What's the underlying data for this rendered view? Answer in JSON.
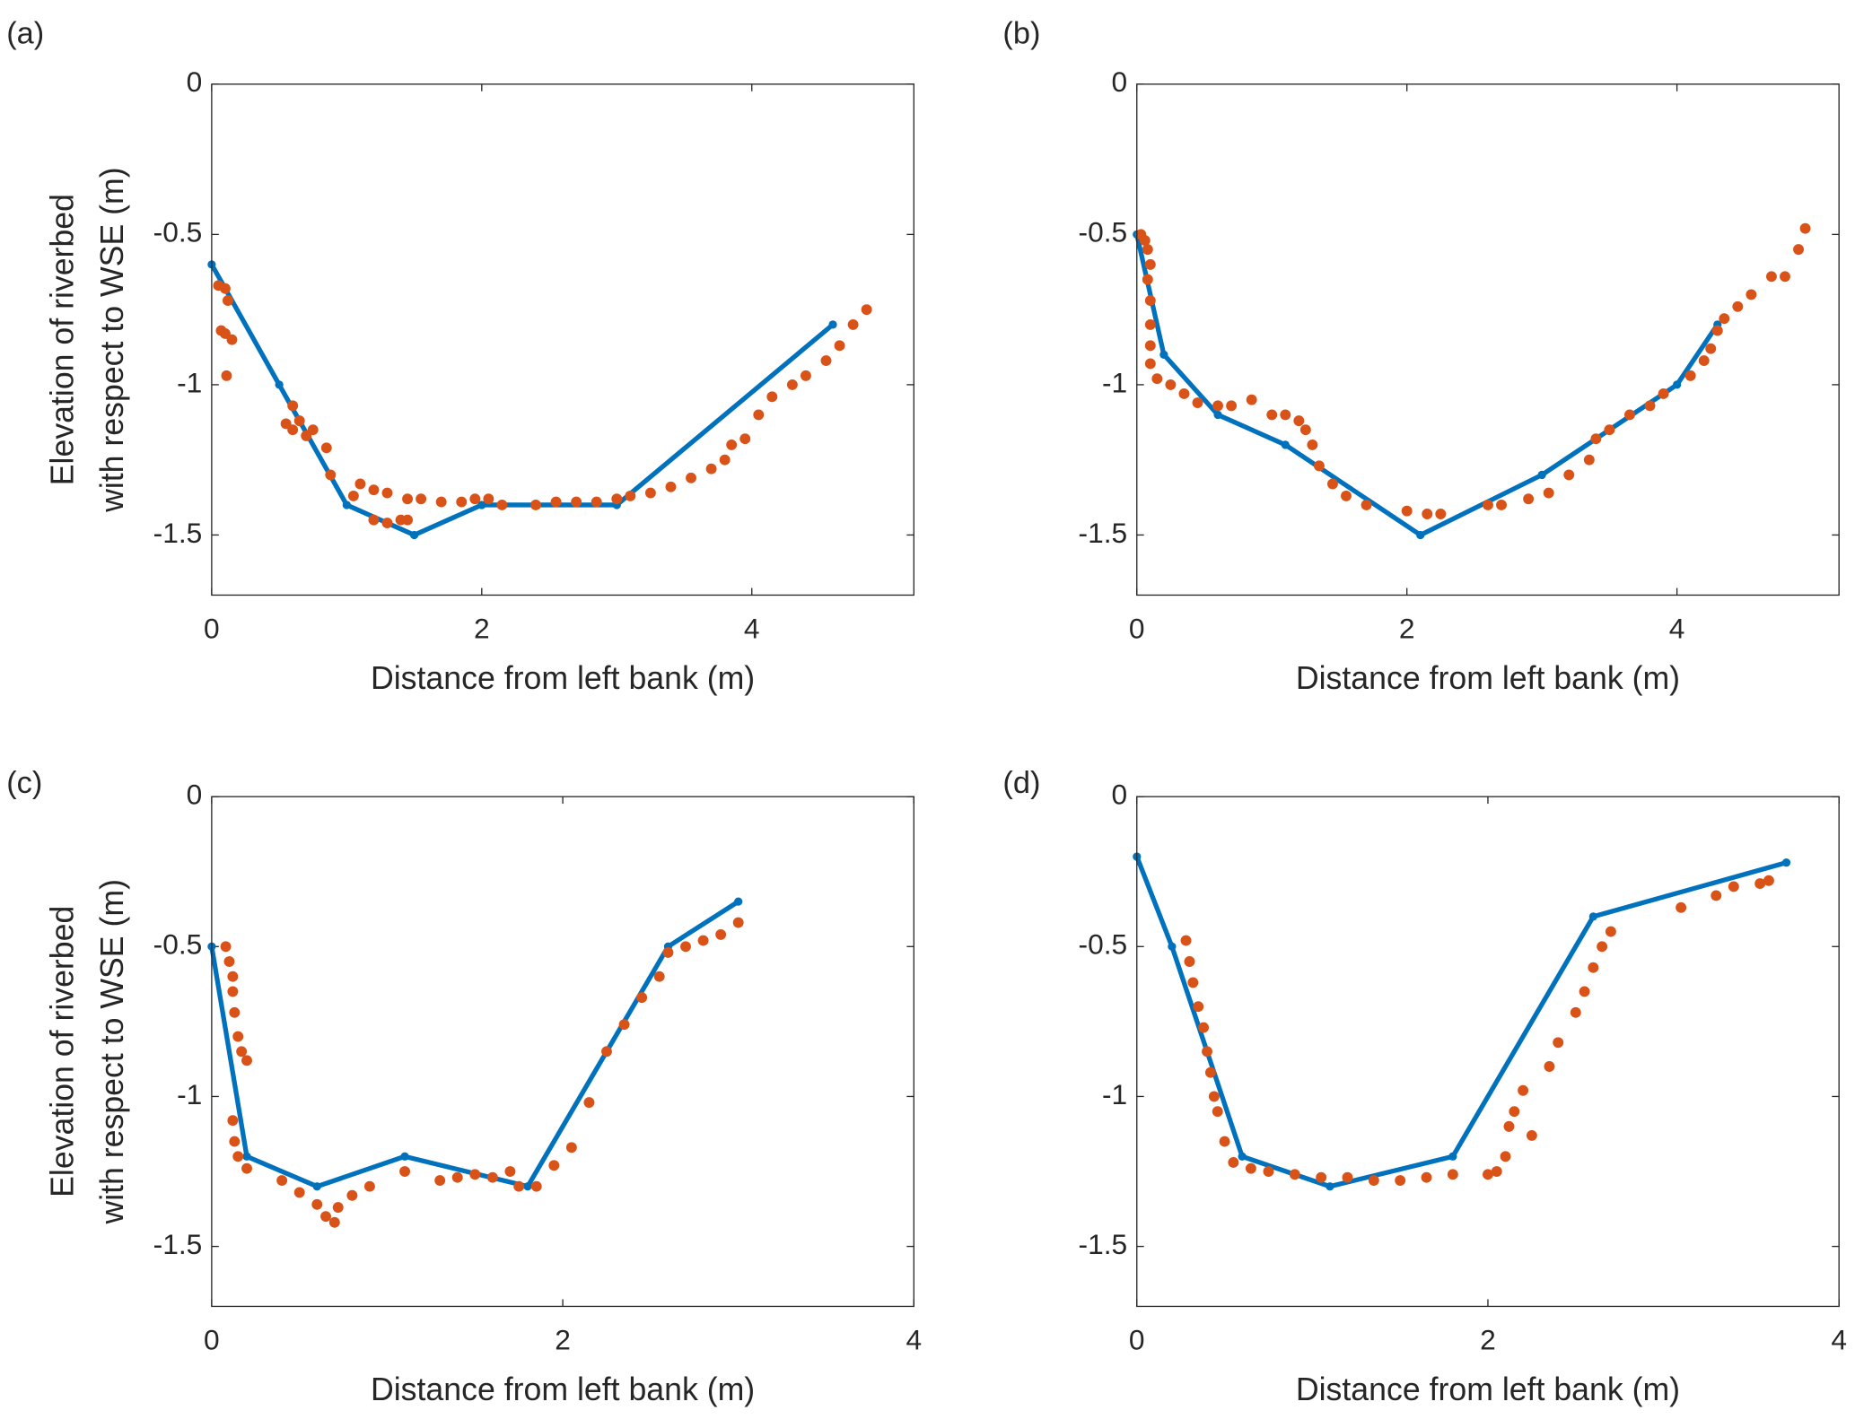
{
  "chart_data": [
    {
      "type": "line",
      "panel_label": "(a)",
      "xlabel": "Distance from left bank (m)",
      "ylabel": [
        "Elevation of riverbed",
        "with respect to WSE (m)"
      ],
      "xlim": [
        0,
        5.2
      ],
      "ylim": [
        -1.7,
        0
      ],
      "xticks": [
        0,
        2,
        4
      ],
      "yticks": [
        -1.5,
        -1,
        -0.5,
        0
      ],
      "series": [
        {
          "type": "line",
          "color": "#0072bd",
          "x": [
            0,
            0.5,
            1,
            1.5,
            2,
            3,
            4.6
          ],
          "values": [
            -0.6,
            -1,
            -1.4,
            -1.5,
            -1.4,
            -1.4,
            -0.8
          ]
        },
        {
          "type": "scatter",
          "color": "#d95319",
          "x": [
            0.05,
            0.1,
            0.12,
            0.07,
            0.1,
            0.15,
            0.11,
            0.55,
            0.6,
            0.6,
            0.65,
            0.7,
            0.75,
            0.85,
            0.88,
            1.05,
            1.1,
            1.2,
            1.3,
            1.4,
            1.45,
            1.2,
            1.3,
            1.45,
            1.55,
            1.7,
            1.85,
            1.95,
            2.05,
            2.15,
            2.4,
            2.55,
            2.7,
            2.85,
            3.0,
            3.1,
            3.25,
            3.4,
            3.55,
            3.7,
            3.8,
            3.85,
            3.95,
            4.05,
            4.15,
            4.3,
            4.4,
            4.55,
            4.65,
            4.75,
            4.85
          ],
          "values": [
            -0.67,
            -0.68,
            -0.72,
            -0.82,
            -0.83,
            -0.85,
            -0.97,
            -1.13,
            -1.07,
            -1.15,
            -1.12,
            -1.17,
            -1.15,
            -1.21,
            -1.3,
            -1.37,
            -1.33,
            -1.45,
            -1.46,
            -1.45,
            -1.45,
            -1.35,
            -1.36,
            -1.38,
            -1.38,
            -1.39,
            -1.39,
            -1.38,
            -1.38,
            -1.4,
            -1.4,
            -1.39,
            -1.39,
            -1.39,
            -1.38,
            -1.37,
            -1.36,
            -1.34,
            -1.31,
            -1.28,
            -1.25,
            -1.2,
            -1.18,
            -1.1,
            -1.04,
            -1.0,
            -0.97,
            -0.92,
            -0.87,
            -0.8,
            -0.75
          ]
        }
      ]
    },
    {
      "type": "line",
      "panel_label": "(b)",
      "xlabel": "Distance from left bank (m)",
      "xlim": [
        0,
        5.2
      ],
      "ylim": [
        -1.7,
        0
      ],
      "xticks": [
        0,
        2,
        4
      ],
      "yticks": [
        -1.5,
        -1,
        -0.5,
        0
      ],
      "series": [
        {
          "type": "line",
          "color": "#0072bd",
          "x": [
            0,
            0.2,
            0.6,
            1.1,
            2.1,
            3.0,
            4.0,
            4.3
          ],
          "values": [
            -0.5,
            -0.9,
            -1.1,
            -1.2,
            -1.5,
            -1.3,
            -1.0,
            -0.8
          ]
        },
        {
          "type": "scatter",
          "color": "#d95319",
          "x": [
            0.03,
            0.06,
            0.08,
            0.1,
            0.08,
            0.1,
            0.1,
            0.1,
            0.1,
            0.15,
            0.25,
            0.35,
            0.45,
            0.6,
            0.7,
            0.85,
            1.0,
            1.1,
            1.2,
            1.25,
            1.3,
            1.35,
            1.45,
            1.55,
            1.7,
            2.0,
            2.15,
            2.25,
            2.6,
            2.7,
            2.9,
            3.05,
            3.2,
            3.35,
            3.4,
            3.5,
            3.65,
            3.8,
            3.9,
            4.1,
            4.2,
            4.25,
            4.3,
            4.35,
            4.45,
            4.55,
            4.7,
            4.8,
            4.9,
            4.95
          ],
          "values": [
            -0.5,
            -0.52,
            -0.55,
            -0.6,
            -0.65,
            -0.72,
            -0.8,
            -0.87,
            -0.93,
            -0.98,
            -1.0,
            -1.03,
            -1.06,
            -1.07,
            -1.07,
            -1.05,
            -1.1,
            -1.1,
            -1.12,
            -1.15,
            -1.2,
            -1.27,
            -1.33,
            -1.37,
            -1.4,
            -1.42,
            -1.43,
            -1.43,
            -1.4,
            -1.4,
            -1.38,
            -1.36,
            -1.3,
            -1.25,
            -1.18,
            -1.15,
            -1.1,
            -1.07,
            -1.03,
            -0.97,
            -0.92,
            -0.88,
            -0.82,
            -0.78,
            -0.74,
            -0.7,
            -0.64,
            -0.64,
            -0.55,
            -0.48
          ]
        }
      ]
    },
    {
      "type": "line",
      "panel_label": "(c)",
      "xlabel": "Distance from left bank (m)",
      "ylabel": [
        "Elevation of riverbed",
        "with respect to WSE (m)"
      ],
      "xlim": [
        0,
        4
      ],
      "ylim": [
        -1.7,
        0
      ],
      "xticks": [
        0,
        2,
        4
      ],
      "yticks": [
        -1.5,
        -1,
        -0.5,
        0
      ],
      "series": [
        {
          "type": "line",
          "color": "#0072bd",
          "x": [
            0,
            0.2,
            0.6,
            1.1,
            1.8,
            2.6,
            3.0
          ],
          "values": [
            -0.5,
            -1.2,
            -1.3,
            -1.2,
            -1.3,
            -0.5,
            -0.35
          ]
        },
        {
          "type": "scatter",
          "color": "#d95319",
          "x": [
            0.08,
            0.1,
            0.12,
            0.12,
            0.13,
            0.15,
            0.17,
            0.2,
            0.12,
            0.13,
            0.15,
            0.2,
            0.4,
            0.5,
            0.6,
            0.65,
            0.7,
            0.72,
            0.8,
            0.9,
            1.1,
            1.3,
            1.4,
            1.5,
            1.6,
            1.7,
            1.75,
            1.85,
            1.95,
            2.05,
            2.15,
            2.25,
            2.35,
            2.45,
            2.55,
            2.6,
            2.7,
            2.8,
            2.9,
            3.0
          ],
          "values": [
            -0.5,
            -0.55,
            -0.6,
            -0.65,
            -0.72,
            -0.8,
            -0.85,
            -0.88,
            -1.08,
            -1.15,
            -1.2,
            -1.24,
            -1.28,
            -1.32,
            -1.36,
            -1.4,
            -1.42,
            -1.37,
            -1.33,
            -1.3,
            -1.25,
            -1.28,
            -1.27,
            -1.26,
            -1.27,
            -1.25,
            -1.3,
            -1.3,
            -1.23,
            -1.17,
            -1.02,
            -0.85,
            -0.76,
            -0.67,
            -0.6,
            -0.52,
            -0.5,
            -0.48,
            -0.46,
            -0.42
          ]
        }
      ]
    },
    {
      "type": "line",
      "panel_label": "(d)",
      "xlabel": "Distance from left bank (m)",
      "xlim": [
        0,
        4
      ],
      "ylim": [
        -1.7,
        0
      ],
      "xticks": [
        0,
        2,
        4
      ],
      "yticks": [
        -1.5,
        -1,
        -0.5,
        0
      ],
      "series": [
        {
          "type": "line",
          "color": "#0072bd",
          "x": [
            0,
            0.2,
            0.6,
            1.1,
            1.8,
            2.6,
            3.7
          ],
          "values": [
            -0.2,
            -0.5,
            -1.2,
            -1.3,
            -1.2,
            -0.4,
            -0.22
          ]
        },
        {
          "type": "scatter",
          "color": "#d95319",
          "x": [
            0.28,
            0.3,
            0.32,
            0.35,
            0.38,
            0.4,
            0.42,
            0.44,
            0.46,
            0.5,
            0.55,
            0.65,
            0.75,
            0.9,
            1.05,
            1.2,
            1.35,
            1.5,
            1.65,
            1.8,
            2.0,
            2.05,
            2.1,
            2.12,
            2.15,
            2.2,
            2.25,
            2.35,
            2.4,
            2.5,
            2.55,
            2.6,
            2.65,
            2.7,
            3.1,
            3.3,
            3.4,
            3.55,
            3.6
          ],
          "values": [
            -0.48,
            -0.55,
            -0.62,
            -0.7,
            -0.77,
            -0.85,
            -0.92,
            -1.0,
            -1.05,
            -1.15,
            -1.22,
            -1.24,
            -1.25,
            -1.26,
            -1.27,
            -1.27,
            -1.28,
            -1.28,
            -1.27,
            -1.26,
            -1.26,
            -1.25,
            -1.2,
            -1.1,
            -1.05,
            -0.98,
            -1.13,
            -0.9,
            -0.82,
            -0.72,
            -0.65,
            -0.57,
            -0.5,
            -0.45,
            -0.37,
            -0.33,
            -0.3,
            -0.29,
            -0.28
          ]
        }
      ]
    }
  ]
}
